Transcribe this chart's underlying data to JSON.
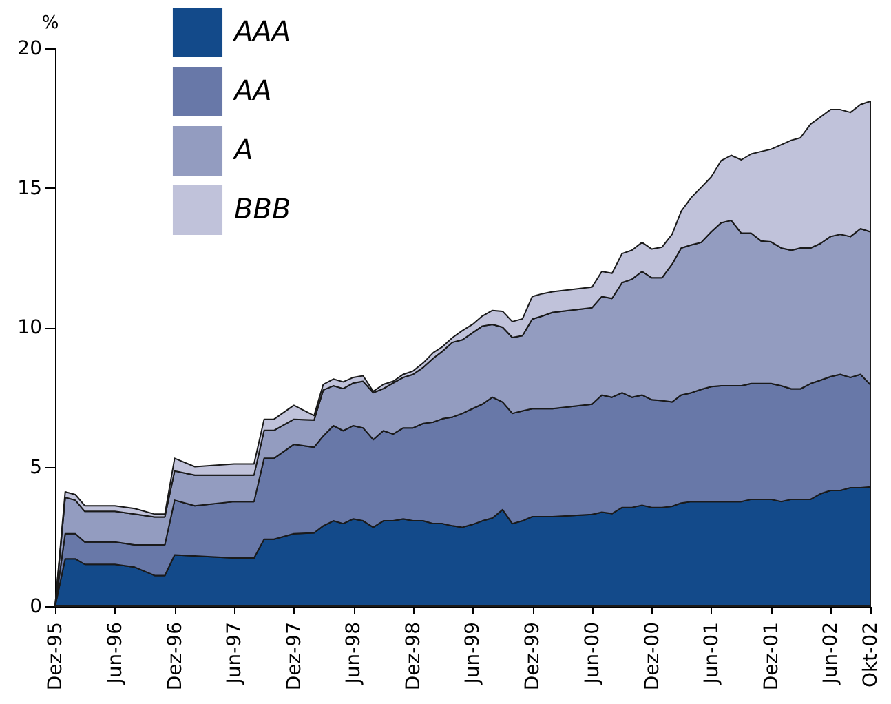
{
  "chart_data": {
    "type": "area",
    "stacked": true,
    "ylabel": "%",
    "x": [
      "1995-12",
      "1996-01",
      "1996-02",
      "1996-03",
      "1996-06",
      "1996-08",
      "1996-10",
      "1996-11",
      "1996-12",
      "1997-02",
      "1997-06",
      "1997-08",
      "1997-09",
      "1997-10",
      "1997-12",
      "1998-02",
      "1998-03",
      "1998-04",
      "1998-05",
      "1998-06",
      "1998-07",
      "1998-08",
      "1998-09",
      "1998-10",
      "1998-11",
      "1998-12",
      "1999-01",
      "1999-02",
      "1999-03",
      "1999-04",
      "1999-05",
      "1999-06",
      "1999-07",
      "1999-08",
      "1999-09",
      "1999-10",
      "1999-11",
      "1999-12",
      "2000-01",
      "2000-02",
      "2000-06",
      "2000-07",
      "2000-08",
      "2000-09",
      "2000-10",
      "2000-11",
      "2000-12",
      "2001-01",
      "2001-02",
      "2001-03",
      "2001-04",
      "2001-05",
      "2001-06",
      "2001-07",
      "2001-08",
      "2001-09",
      "2001-10",
      "2001-11",
      "2001-12",
      "2002-01",
      "2002-02",
      "2002-03",
      "2002-04",
      "2002-05",
      "2002-06",
      "2002-07",
      "2002-08",
      "2002-09",
      "2002-10"
    ],
    "series": [
      {
        "name": "AAA",
        "color": "#134a8a",
        "values": [
          0,
          1.7,
          1.7,
          1.5,
          1.5,
          1.4,
          1.1,
          1.1,
          1.84,
          1.8,
          1.73,
          1.73,
          2.4,
          2.4,
          2.6,
          2.63,
          2.88,
          3.06,
          2.96,
          3.13,
          3.06,
          2.83,
          3.06,
          3.06,
          3.13,
          3.06,
          3.06,
          2.96,
          2.96,
          2.88,
          2.83,
          2.93,
          3.06,
          3.16,
          3.46,
          2.96,
          3.06,
          3.21,
          3.21,
          3.21,
          3.29,
          3.37,
          3.32,
          3.54,
          3.54,
          3.62,
          3.54,
          3.54,
          3.58,
          3.7,
          3.75,
          3.75,
          3.75,
          3.75,
          3.75,
          3.75,
          3.83,
          3.83,
          3.83,
          3.75,
          3.83,
          3.83,
          3.83,
          4.03,
          4.15,
          4.15,
          4.25,
          4.25,
          4.28
        ]
      },
      {
        "name": "AA",
        "color": "#6878a8",
        "values": [
          0,
          0.9,
          0.9,
          0.8,
          0.8,
          0.8,
          1.1,
          1.1,
          1.96,
          1.8,
          2.02,
          2.02,
          2.9,
          2.9,
          3.2,
          3.07,
          3.22,
          3.41,
          3.33,
          3.34,
          3.33,
          3.14,
          3.23,
          3.11,
          3.26,
          3.33,
          3.49,
          3.64,
          3.76,
          3.9,
          4.08,
          4.15,
          4.18,
          4.33,
          3.86,
          3.95,
          3.94,
          3.87,
          3.87,
          3.87,
          3.95,
          4.2,
          4.17,
          4.11,
          3.95,
          3.95,
          3.86,
          3.83,
          3.74,
          3.87,
          3.9,
          4.02,
          4.12,
          4.15,
          4.15,
          4.15,
          4.15,
          4.15,
          4.15,
          4.15,
          3.96,
          3.96,
          4.15,
          4.07,
          4.08,
          4.16,
          3.95,
          4.06,
          3.66
        ]
      },
      {
        "name": "A",
        "color": "#939cc0",
        "values": [
          0,
          1.3,
          1.2,
          1.1,
          1.1,
          1.1,
          1.0,
          1.0,
          1.05,
          1.1,
          0.95,
          0.95,
          1.0,
          1.0,
          0.9,
          0.97,
          1.65,
          1.43,
          1.51,
          1.53,
          1.67,
          1.68,
          1.51,
          1.83,
          1.81,
          1.92,
          2.01,
          2.29,
          2.42,
          2.68,
          2.64,
          2.72,
          2.8,
          2.61,
          2.68,
          2.72,
          2.7,
          3.21,
          3.32,
          3.45,
          3.46,
          3.53,
          3.54,
          3.95,
          4.23,
          4.43,
          4.37,
          4.4,
          4.94,
          5.27,
          5.3,
          5.27,
          5.55,
          5.84,
          5.93,
          5.47,
          5.39,
          5.11,
          5.08,
          4.94,
          4.97,
          5.05,
          4.86,
          4.9,
          5.02,
          5.02,
          5.05,
          5.22,
          5.48
        ]
      },
      {
        "name": "BBB",
        "color": "#c0c2da",
        "values": [
          0,
          0.2,
          0.2,
          0.2,
          0.2,
          0.2,
          0.1,
          0.1,
          0.45,
          0.3,
          0.4,
          0.4,
          0.4,
          0.4,
          0.5,
          0.16,
          0.2,
          0.24,
          0.24,
          0.2,
          0.2,
          0.05,
          0.15,
          0.06,
          0.11,
          0.12,
          0.16,
          0.2,
          0.16,
          0.17,
          0.33,
          0.3,
          0.36,
          0.5,
          0.57,
          0.57,
          0.6,
          0.81,
          0.8,
          0.74,
          0.74,
          0.9,
          0.9,
          1.04,
          1.04,
          1.04,
          1.03,
          1.1,
          1.07,
          1.32,
          1.7,
          1.97,
          1.97,
          2.23,
          2.33,
          2.63,
          2.84,
          3.21,
          3.32,
          3.7,
          3.94,
          3.95,
          4.44,
          4.53,
          4.55,
          4.47,
          4.45,
          4.45,
          4.68
        ]
      }
    ],
    "xlim": [
      "1995-12",
      "2002-10"
    ],
    "xticks": [
      {
        "value": "1995-12",
        "label": "Dez-95"
      },
      {
        "value": "1996-06",
        "label": "Jun-96"
      },
      {
        "value": "1996-12",
        "label": "Dez-96"
      },
      {
        "value": "1997-06",
        "label": "Jun-97"
      },
      {
        "value": "1997-12",
        "label": "Dez-97"
      },
      {
        "value": "1998-06",
        "label": "Jun-98"
      },
      {
        "value": "1998-12",
        "label": "Dez-98"
      },
      {
        "value": "1999-06",
        "label": "Jun-99"
      },
      {
        "value": "1999-12",
        "label": "Dez-99"
      },
      {
        "value": "2000-06",
        "label": "Jun-00"
      },
      {
        "value": "2000-12",
        "label": "Dez-00"
      },
      {
        "value": "2001-06",
        "label": "Jun-01"
      },
      {
        "value": "2001-12",
        "label": "Dez-01"
      },
      {
        "value": "2002-06",
        "label": "Jun-02"
      },
      {
        "value": "2002-10",
        "label": "Okt-02"
      }
    ],
    "ylim": [
      0,
      20
    ],
    "yticks": [
      0,
      5,
      10,
      15,
      20
    ],
    "grid": false,
    "legend": "top left"
  }
}
